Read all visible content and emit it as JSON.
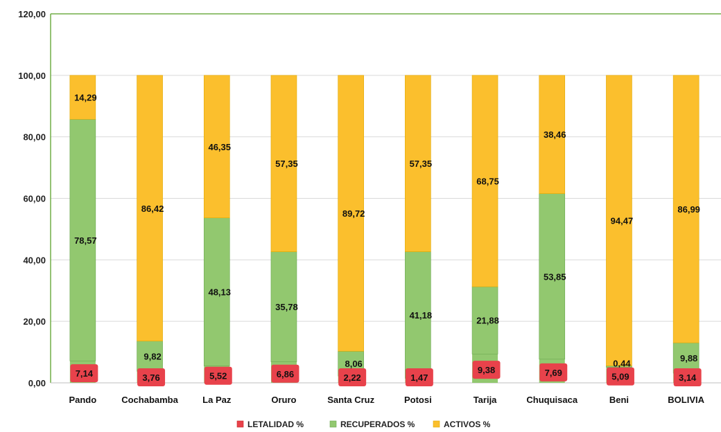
{
  "chart_data": {
    "type": "bar",
    "stacked": true,
    "categories": [
      "Pando",
      "Cochabamba",
      "La Paz",
      "Oruro",
      "Santa Cruz",
      "Potosi",
      "Tarija",
      "Chuquisaca",
      "Beni",
      "BOLIVIA"
    ],
    "series": [
      {
        "name": "LETALIDAD %",
        "color": "#E8424B",
        "values": [
          7.14,
          3.76,
          5.52,
          6.86,
          2.22,
          1.47,
          9.38,
          7.69,
          5.09,
          3.14
        ],
        "labels": [
          "7,14",
          "3,76",
          "5,52",
          "6,86",
          "2,22",
          "1,47",
          "9,38",
          "7,69",
          "5,09",
          "3,14"
        ]
      },
      {
        "name": "RECUPERADOS %",
        "color": "#92C86F",
        "values": [
          78.57,
          9.82,
          48.13,
          35.78,
          8.06,
          41.18,
          21.88,
          53.85,
          0.44,
          9.88
        ],
        "labels": [
          "78,57",
          "9,82",
          "48,13",
          "35,78",
          "8,06",
          "41,18",
          "21,88",
          "53,85",
          "0,44",
          "9,88"
        ]
      },
      {
        "name": "ACTIVOS %",
        "color": "#FBBF2D",
        "values": [
          14.29,
          86.42,
          46.35,
          57.35,
          89.72,
          57.35,
          68.75,
          38.46,
          94.47,
          86.99
        ],
        "labels": [
          "14,29",
          "86,42",
          "46,35",
          "57,35",
          "89,72",
          "57,35",
          "68,75",
          "38,46",
          "94,47",
          "86,99"
        ]
      }
    ],
    "yticks": [
      "0,00",
      "20,00",
      "40,00",
      "60,00",
      "80,00",
      "100,00",
      "120,00"
    ],
    "ylim": [
      0,
      120
    ],
    "grid": true,
    "legend_position": "bottom"
  }
}
